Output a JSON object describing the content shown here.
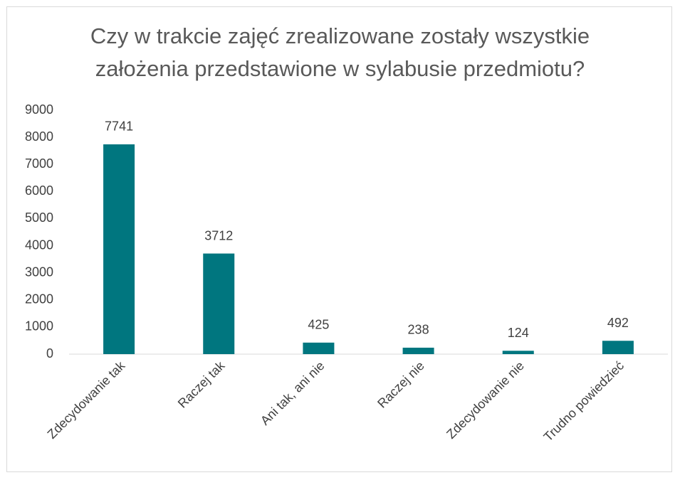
{
  "chart_data": {
    "type": "bar",
    "title": "Czy w trakcie zajęć zrealizowane zostały wszystkie założenia przedstawione w sylabusie przedmiotu?",
    "categories": [
      "Zdecydowanie tak",
      "Raczej tak",
      "Ani tak, ani nie",
      "Raczej nie",
      "Zdecydowanie nie",
      "Trudno powiedzieć"
    ],
    "values": [
      7741,
      3712,
      425,
      238,
      124,
      492
    ],
    "color": "#00767f",
    "ylim": [
      0,
      9000
    ],
    "yticks": [
      0,
      1000,
      2000,
      3000,
      4000,
      5000,
      6000,
      7000,
      8000,
      9000
    ],
    "grid": false
  }
}
